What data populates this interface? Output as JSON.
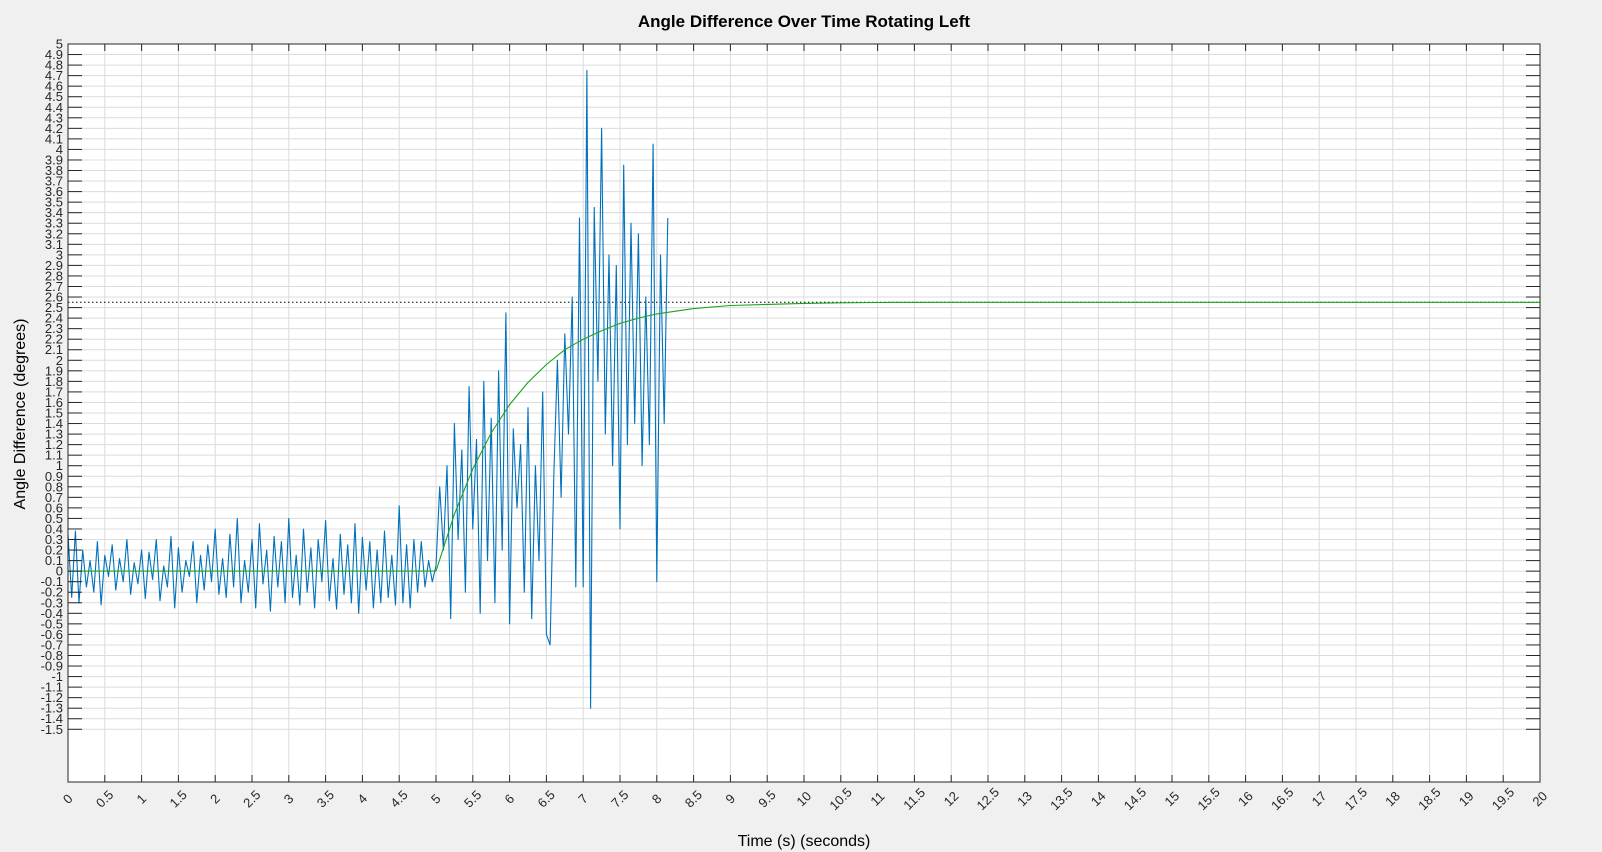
{
  "chart_data": {
    "type": "line",
    "title": "Angle Difference Over Time Rotating Left",
    "xlabel": "Time (s) (seconds)",
    "ylabel": "Angle Difference (degrees)",
    "xlim": [
      0,
      20
    ],
    "ylim": [
      -2,
      5
    ],
    "grid": true,
    "x_ticks": [
      "0",
      "0.5",
      "1",
      "1.5",
      "2",
      "2.5",
      "3",
      "3.5",
      "4",
      "4.5",
      "5",
      "5.5",
      "6",
      "6.5",
      "7",
      "7.5",
      "8",
      "8.5",
      "9",
      "9.5",
      "10",
      "10.5",
      "11",
      "11.5",
      "12",
      "12.5",
      "13",
      "13.5",
      "14",
      "14.5",
      "15",
      "15.5",
      "16",
      "16.5",
      "17",
      "17.5",
      "18",
      "18.5",
      "19",
      "19.5",
      "20"
    ],
    "y_ticks": [
      "-1.5",
      "-1.4",
      "-1.3",
      "-1.2",
      "-1.1",
      "-1",
      "-0.9",
      "-0.8",
      "-0.7",
      "-0.6",
      "-0.5",
      "-0.4",
      "-0.3",
      "-0.2",
      "-0.1",
      "0",
      "0.1",
      "0.2",
      "0.3",
      "0.4",
      "0.5",
      "0.6",
      "0.7",
      "0.8",
      "0.9",
      "1",
      "1.1",
      "1.2",
      "1.3",
      "1.4",
      "1.5",
      "1.6",
      "1.7",
      "1.8",
      "1.9",
      "2",
      "2.1",
      "2.2",
      "2.3",
      "2.4",
      "2.5",
      "2.6",
      "2.7",
      "2.8",
      "2.9",
      "3",
      "3.1",
      "3.2",
      "3.3",
      "3.4",
      "3.5",
      "3.6",
      "3.7",
      "3.8",
      "3.9",
      "4",
      "4.1",
      "4.2",
      "4.3",
      "4.4",
      "4.5",
      "4.6",
      "4.7",
      "4.8",
      "4.9",
      "5"
    ],
    "reference_line": {
      "y": 2.55,
      "style": "dotted",
      "color": "#000000"
    },
    "series": [
      {
        "color": "#0072bd",
        "x": [
          0.0,
          0.05,
          0.1,
          0.15,
          0.2,
          0.25,
          0.3,
          0.35,
          0.4,
          0.45,
          0.5,
          0.55,
          0.6,
          0.65,
          0.7,
          0.75,
          0.8,
          0.85,
          0.9,
          0.95,
          1.0,
          1.05,
          1.1,
          1.15,
          1.2,
          1.25,
          1.3,
          1.35,
          1.4,
          1.45,
          1.5,
          1.55,
          1.6,
          1.65,
          1.7,
          1.75,
          1.8,
          1.85,
          1.9,
          1.95,
          2.0,
          2.05,
          2.1,
          2.15,
          2.2,
          2.25,
          2.3,
          2.35,
          2.4,
          2.45,
          2.5,
          2.55,
          2.6,
          2.65,
          2.7,
          2.75,
          2.8,
          2.85,
          2.9,
          2.95,
          3.0,
          3.05,
          3.1,
          3.15,
          3.2,
          3.25,
          3.3,
          3.35,
          3.4,
          3.45,
          3.5,
          3.55,
          3.6,
          3.65,
          3.7,
          3.75,
          3.8,
          3.85,
          3.9,
          3.95,
          4.0,
          4.05,
          4.1,
          4.15,
          4.2,
          4.25,
          4.3,
          4.35,
          4.4,
          4.45,
          4.5,
          4.55,
          4.6,
          4.65,
          4.7,
          4.75,
          4.8,
          4.85,
          4.9,
          4.95,
          5.0,
          5.05,
          5.1,
          5.15,
          5.2,
          5.25,
          5.3,
          5.35,
          5.4,
          5.45,
          5.5,
          5.55,
          5.6,
          5.65,
          5.7,
          5.75,
          5.8,
          5.85,
          5.9,
          5.95,
          6.0,
          6.05,
          6.1,
          6.15,
          6.2,
          6.25,
          6.3,
          6.35,
          6.4,
          6.45,
          6.5,
          6.55,
          6.6,
          6.65,
          6.7,
          6.75,
          6.8,
          6.85,
          6.9,
          6.95,
          7.0,
          7.05,
          7.1,
          7.15,
          7.2,
          7.25,
          7.3,
          7.35,
          7.4,
          7.45,
          7.5,
          7.55,
          7.6,
          7.65,
          7.7,
          7.75,
          7.8,
          7.85,
          7.9,
          7.95,
          8.0,
          8.05,
          8.1,
          8.15
        ],
        "values": [
          0.35,
          -0.25,
          0.38,
          -0.3,
          0.2,
          -0.15,
          0.1,
          -0.2,
          0.28,
          -0.32,
          0.15,
          -0.05,
          0.25,
          -0.18,
          0.12,
          -0.1,
          0.3,
          -0.22,
          0.08,
          -0.12,
          0.2,
          -0.26,
          0.18,
          -0.08,
          0.3,
          -0.28,
          0.05,
          -0.15,
          0.33,
          -0.35,
          0.22,
          -0.2,
          0.1,
          -0.05,
          0.28,
          -0.3,
          0.15,
          -0.18,
          0.25,
          -0.1,
          0.4,
          -0.22,
          0.12,
          -0.25,
          0.35,
          -0.15,
          0.5,
          -0.3,
          0.1,
          -0.2,
          0.3,
          -0.35,
          0.45,
          -0.12,
          0.2,
          -0.38,
          0.33,
          -0.15,
          0.28,
          -0.3,
          0.5,
          -0.25,
          0.15,
          -0.32,
          0.4,
          -0.2,
          0.22,
          -0.35,
          0.3,
          -0.1,
          0.48,
          -0.28,
          0.12,
          -0.36,
          0.35,
          -0.22,
          0.25,
          -0.3,
          0.45,
          -0.4,
          0.32,
          -0.18,
          0.28,
          -0.35,
          0.2,
          -0.3,
          0.38,
          -0.25,
          0.15,
          -0.32,
          0.62,
          -0.3,
          0.25,
          -0.35,
          0.3,
          -0.2,
          0.28,
          -0.15,
          0.1,
          -0.1,
          0.05,
          0.8,
          0.2,
          1.0,
          -0.45,
          1.4,
          0.3,
          1.15,
          -0.2,
          1.75,
          0.4,
          1.25,
          -0.4,
          1.8,
          0.1,
          1.45,
          -0.3,
          1.9,
          0.2,
          2.45,
          -0.5,
          1.35,
          0.6,
          1.2,
          -0.2,
          1.55,
          -0.45,
          1.0,
          0.1,
          1.7,
          -0.6,
          -0.7,
          0.9,
          2.0,
          0.7,
          2.25,
          1.3,
          2.6,
          -0.15,
          3.35,
          -0.15,
          4.75,
          -1.3,
          3.45,
          1.8,
          4.2,
          1.3,
          3.0,
          1.0,
          2.9,
          0.4,
          3.85,
          1.2,
          3.3,
          1.4,
          3.2,
          1.0,
          2.6,
          1.2,
          4.05,
          -0.1,
          3.0,
          1.4,
          3.35
        ]
      },
      {
        "color": "#1aa31a",
        "x": [
          0,
          0.5,
          1,
          1.5,
          2,
          2.5,
          3,
          3.5,
          4,
          4.5,
          5,
          5.25,
          5.5,
          5.75,
          6,
          6.25,
          6.5,
          6.75,
          7,
          7.25,
          7.5,
          7.75,
          8,
          8.5,
          9,
          9.5,
          10,
          10.5,
          11,
          12,
          13,
          14,
          15,
          16,
          17,
          18,
          19,
          20
        ],
        "values": [
          0,
          0,
          0,
          0,
          0,
          0,
          0,
          0,
          0,
          0,
          0,
          0.54,
          0.97,
          1.31,
          1.58,
          1.79,
          1.96,
          2.1,
          2.2,
          2.28,
          2.35,
          2.4,
          2.44,
          2.49,
          2.52,
          2.53,
          2.54,
          2.545,
          2.548,
          2.55,
          2.55,
          2.55,
          2.55,
          2.55,
          2.55,
          2.55,
          2.55,
          2.55
        ]
      }
    ]
  }
}
